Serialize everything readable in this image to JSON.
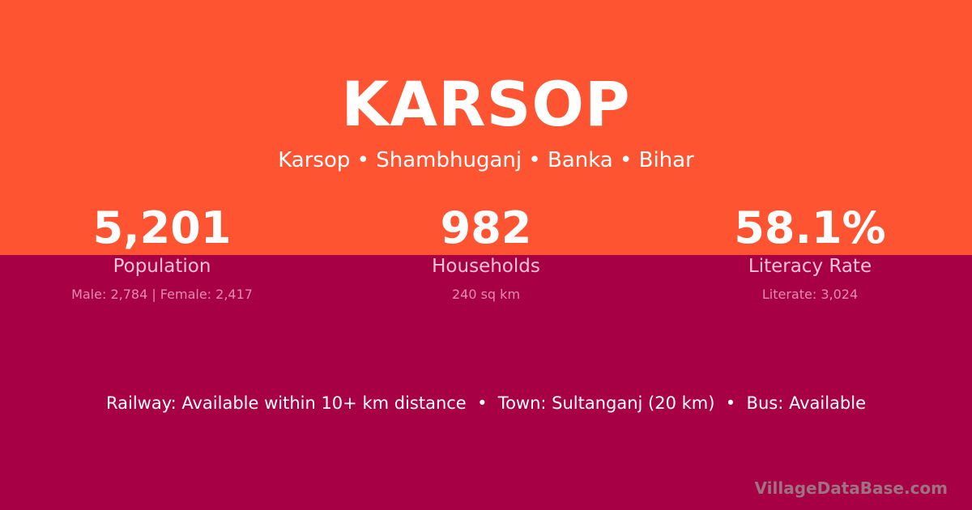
{
  "title": "KARSOP",
  "subtitle": "Karsop • Shambhuganj • Banka • Bihar",
  "stats": [
    {
      "value": "5,201",
      "label": "Population",
      "detail": "Male: 2,784 | Female: 2,417"
    },
    {
      "value": "982",
      "label": "Households",
      "detail": "240 sq km"
    },
    {
      "value": "58.1%",
      "label": "Literacy Rate",
      "detail": "Literate: 3,024"
    }
  ],
  "info": "Railway: Available within 10+ km distance  •  Town: Sultanganj (20 km)  •  Bus: Available",
  "watermark": "VillageDataBase.com",
  "colors": {
    "top": "#ff5432",
    "bottom": "#a80044"
  }
}
